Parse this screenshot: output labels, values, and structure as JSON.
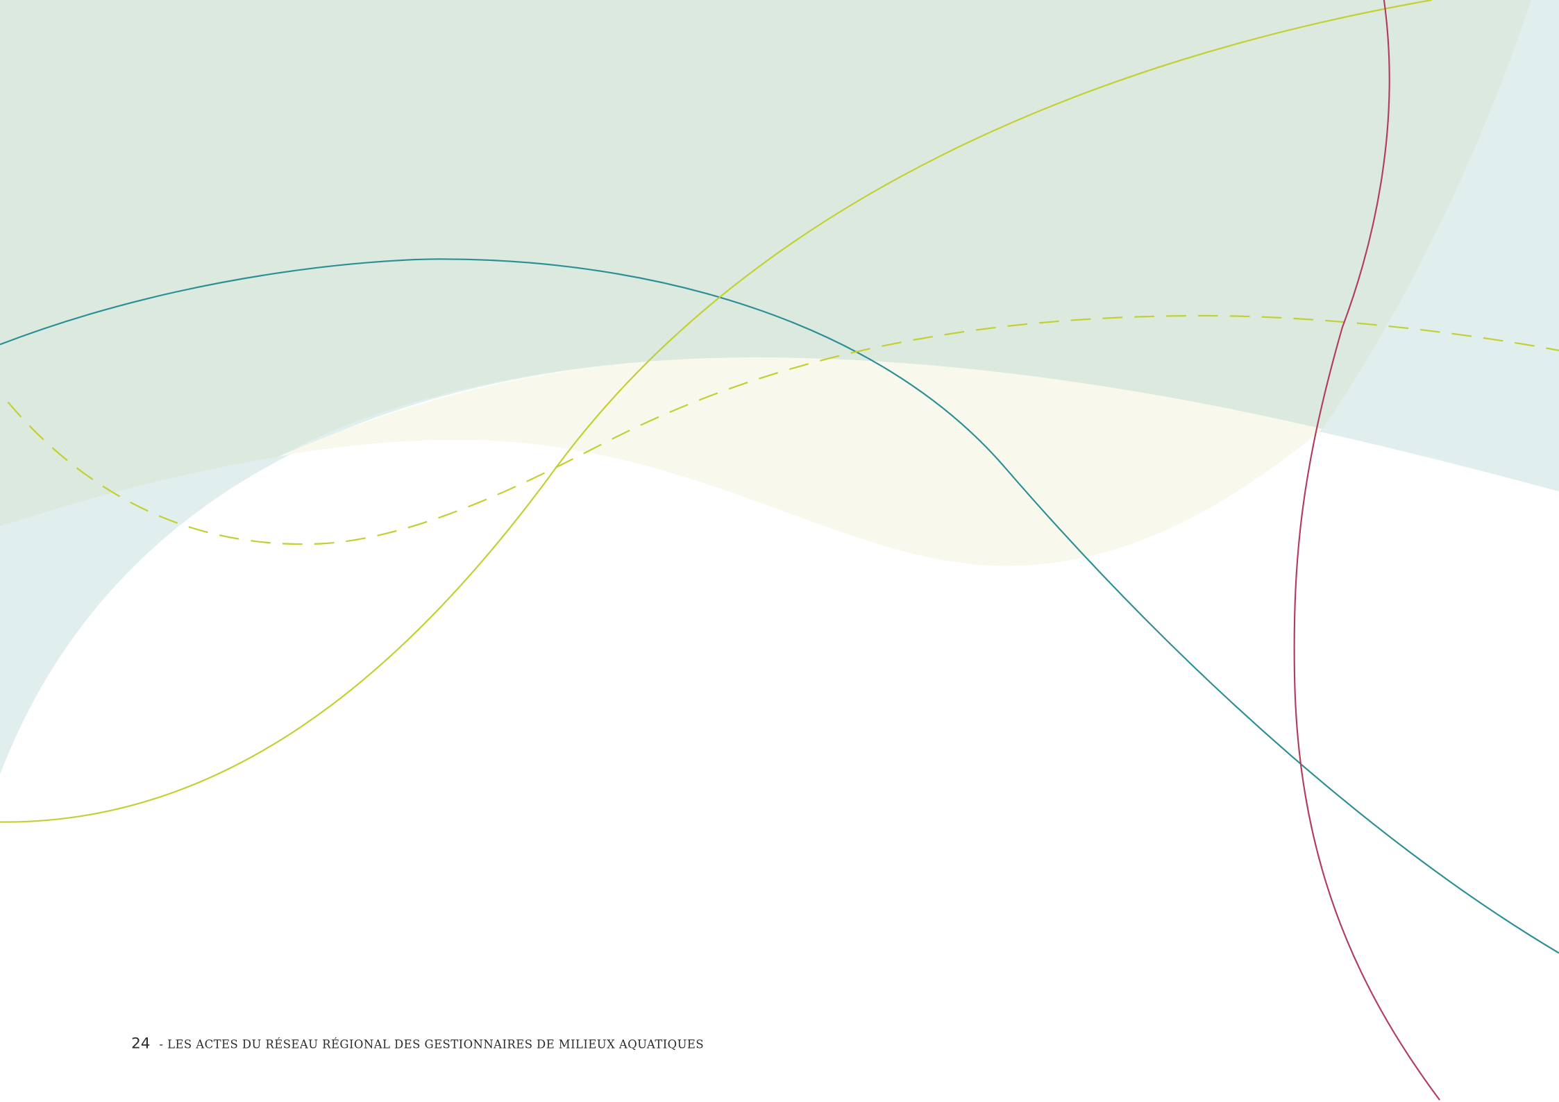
{
  "footer": {
    "page_number": "24",
    "text": "- LES ACTES DU RÉSEAU RÉGIONAL DES GESTIONNAIRES DE MILIEUX AQUATIQUES"
  }
}
